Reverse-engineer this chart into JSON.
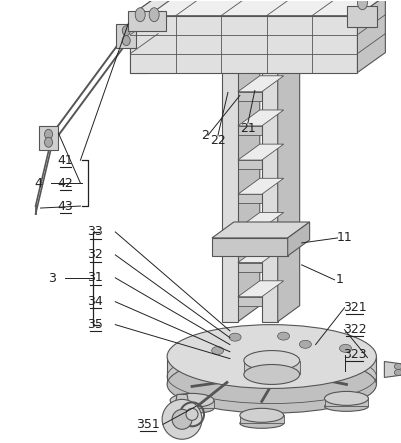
{
  "bg_color": "#ffffff",
  "line_color": "#555555",
  "figsize": [
    4.02,
    4.43
  ],
  "dpi": 100,
  "label_fontsize": 9,
  "label_color": "#222222"
}
